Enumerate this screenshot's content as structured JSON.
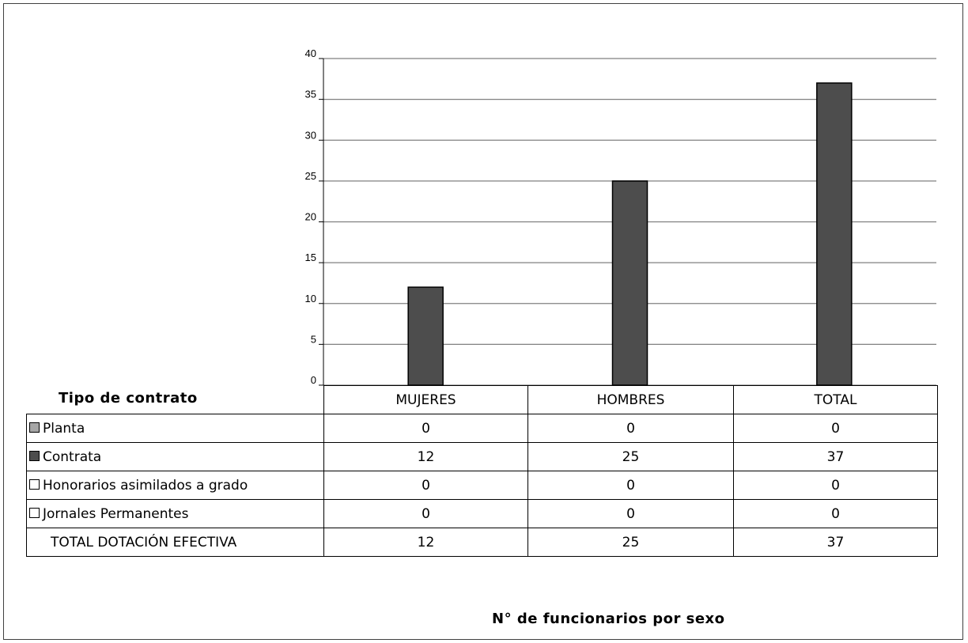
{
  "chart_data": {
    "type": "bar",
    "categories": [
      "MUJERES",
      "HOMBRES",
      "TOTAL"
    ],
    "series": [
      {
        "name": "Planta",
        "values": [
          0,
          0,
          0
        ],
        "color": "#a6a6a6"
      },
      {
        "name": "Contrata",
        "values": [
          12,
          25,
          37
        ],
        "color": "#4d4d4d"
      },
      {
        "name": "Honorarios asimilados a grado",
        "values": [
          0,
          0,
          0
        ],
        "color": "#ffffff"
      },
      {
        "name": "Jornales Permanentes",
        "values": [
          0,
          0,
          0
        ],
        "color": "#ffffff"
      }
    ],
    "totals": {
      "label": "TOTAL DOTACIÓN EFECTIVA",
      "values": [
        12,
        25,
        37
      ]
    },
    "yticks": [
      "0",
      "5",
      "10",
      "15",
      "20",
      "25",
      "30",
      "35",
      "40"
    ],
    "ylim": [
      0,
      40
    ],
    "legend_title": "Tipo de contrato",
    "xlabel": "N° de funcionarios por sexo",
    "grid": true
  }
}
